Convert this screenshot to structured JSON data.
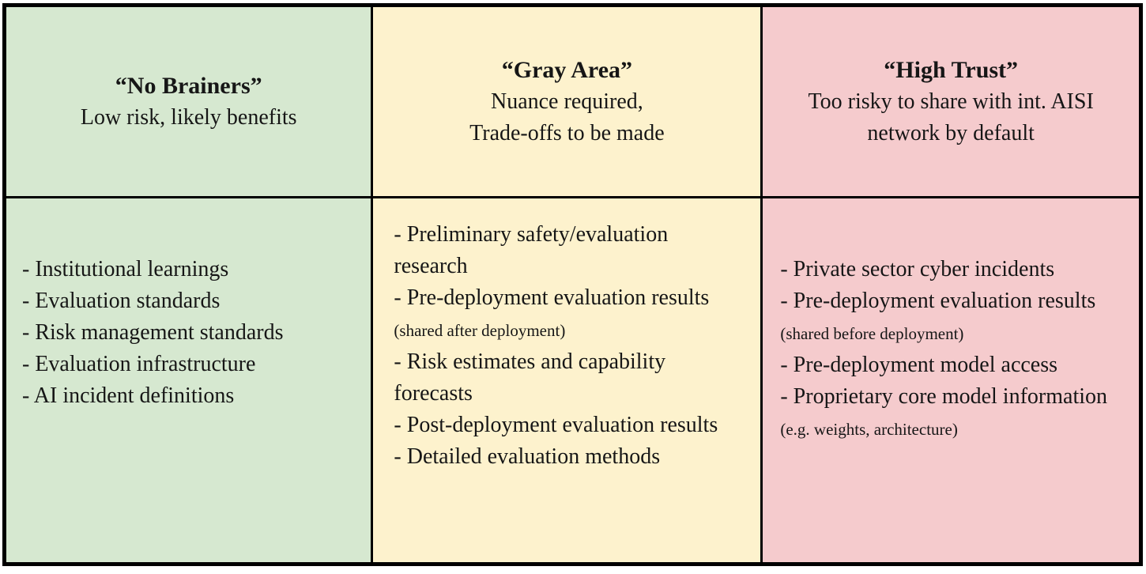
{
  "page": {
    "background": "#ffffff",
    "border_color": "#000000",
    "text_color": "#161616"
  },
  "columns": [
    {
      "name": "no-brainers",
      "bg_color": "#d6e8d0",
      "title": "“No Brainers”",
      "subtitle_lines": [
        "Low risk, likely benefits"
      ],
      "items": [
        {
          "text": "- Institutional learnings"
        },
        {
          "text": "- Evaluation standards"
        },
        {
          "text": "- Risk management standards"
        },
        {
          "text": "- Evaluation infrastructure"
        },
        {
          "text": "- AI incident definitions"
        }
      ]
    },
    {
      "name": "gray-area",
      "bg_color": "#fdf2cd",
      "title": "“Gray Area”",
      "subtitle_lines": [
        "Nuance required,",
        "Trade-offs to be made"
      ],
      "items": [
        {
          "text": "- Preliminary safety/evaluation research"
        },
        {
          "text": "- Pre-deployment evaluation results",
          "note": "(shared after deployment)"
        },
        {
          "text": "- Risk estimates and capability forecasts"
        },
        {
          "text": "- Post-deployment evaluation results"
        },
        {
          "text": "- Detailed evaluation methods"
        }
      ]
    },
    {
      "name": "high-trust",
      "bg_color": "#f5cbcd",
      "title": "“High Trust”",
      "subtitle_lines": [
        "Too risky to share with int. AISI network by default"
      ],
      "items": [
        {
          "text": "- Private sector cyber incidents"
        },
        {
          "text": "- Pre-deployment evaluation results",
          "note": "(shared before deployment)"
        },
        {
          "text": "- Pre-deployment model access"
        },
        {
          "text": "- Proprietary core model information",
          "note": "(e.g. weights, architecture)"
        }
      ]
    }
  ]
}
